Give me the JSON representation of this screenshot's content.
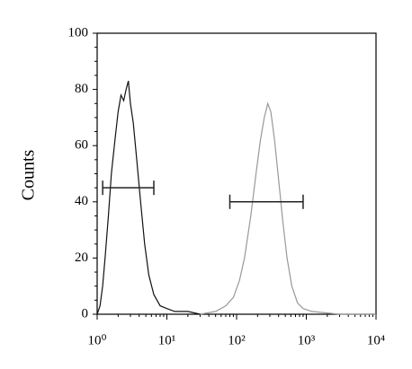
{
  "chart_data": {
    "type": "line",
    "ylabel": "Counts",
    "xscale": "log",
    "xlim": [
      1,
      10000
    ],
    "xticks": [
      {
        "value": 1,
        "label": "10⁰"
      },
      {
        "value": 10,
        "label": "10¹"
      },
      {
        "value": 100,
        "label": "10²"
      },
      {
        "value": 1000,
        "label": "10³"
      },
      {
        "value": 10000,
        "label": "10⁴"
      }
    ],
    "ylim": [
      0,
      100
    ],
    "yticks": [
      0,
      20,
      40,
      60,
      80,
      100
    ],
    "series": [
      {
        "color": "#111111",
        "x": [
          1.0,
          1.1,
          1.2,
          1.3,
          1.45,
          1.6,
          1.8,
          2.0,
          2.2,
          2.4,
          2.6,
          2.8,
          3.0,
          3.3,
          3.7,
          4.2,
          4.8,
          5.5,
          6.5,
          8,
          10,
          13,
          20,
          30
        ],
        "values": [
          0,
          3,
          10,
          20,
          35,
          50,
          62,
          72,
          78,
          76,
          80,
          83,
          75,
          68,
          55,
          40,
          25,
          14,
          7,
          3,
          2,
          1,
          1,
          0
        ]
      },
      {
        "color": "#999999",
        "x": [
          30,
          50,
          70,
          90,
          110,
          130,
          160,
          190,
          220,
          250,
          280,
          310,
          350,
          400,
          460,
          530,
          620,
          750,
          900,
          1200,
          3000,
          10000
        ],
        "values": [
          0,
          1,
          3,
          6,
          12,
          20,
          35,
          50,
          62,
          70,
          75,
          72,
          62,
          48,
          33,
          20,
          10,
          4,
          2,
          1,
          0,
          0
        ]
      }
    ],
    "gates": [
      {
        "y": 45,
        "x": [
          1.2,
          6.5
        ]
      },
      {
        "y": 40,
        "x": [
          80,
          900
        ]
      }
    ]
  }
}
